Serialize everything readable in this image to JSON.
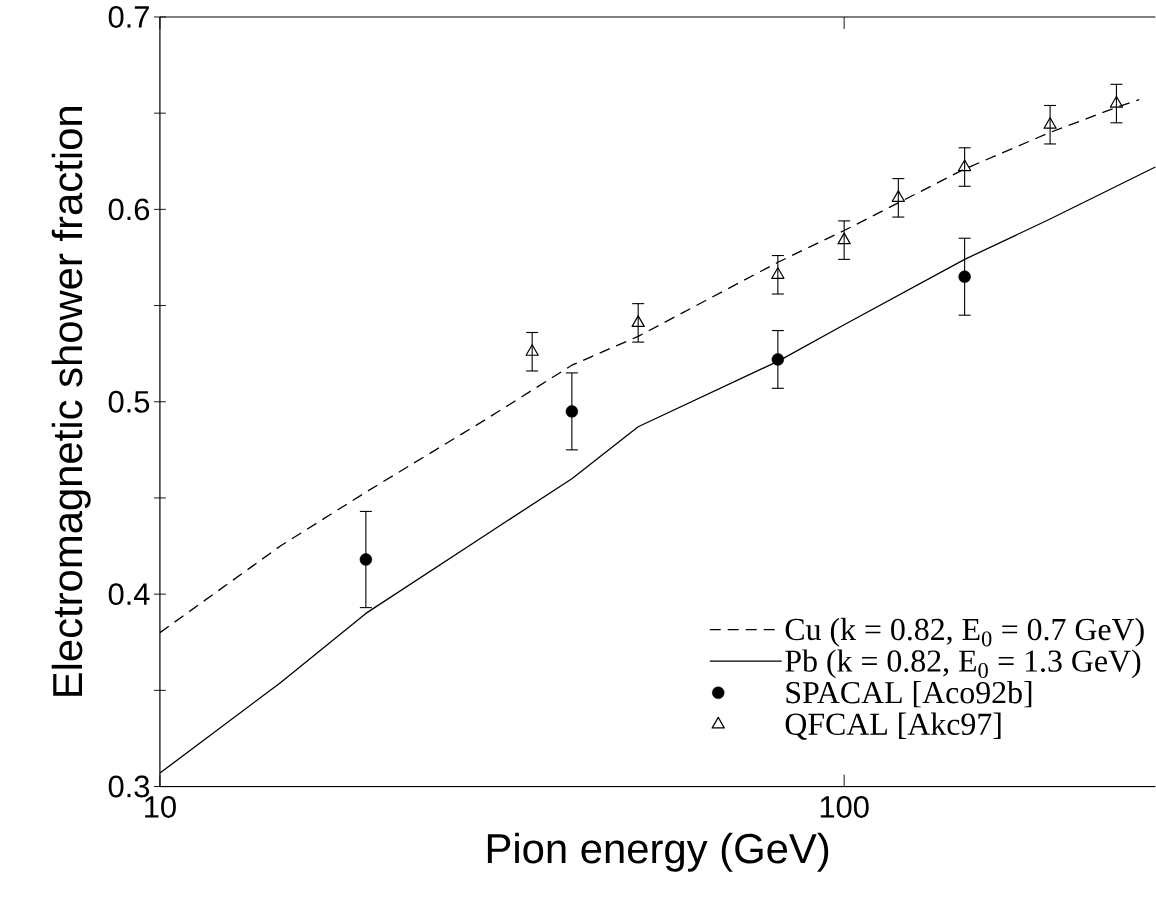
{
  "chart_data": {
    "type": "line",
    "xlabel": "Pion energy (GeV)",
    "ylabel": "Electromagnetic shower fraction",
    "log": "x",
    "xlim": [
      10,
      285
    ],
    "ylim": [
      0.3,
      0.7
    ],
    "xticks": [
      10,
      100
    ],
    "yticks": [
      0.3,
      {
        "value": 0.35,
        "label": null
      },
      0.4,
      {
        "value": 0.45,
        "label": null
      },
      0.5,
      {
        "value": 0.55,
        "label": null
      },
      0.6,
      {
        "value": 0.65,
        "label": null
      },
      0.7
    ],
    "legend": "bottom right",
    "series": [
      {
        "name": "Cu  (k = 0.82, E$_{0}$ = 0.7 GeV)",
        "line_style": "dashed",
        "marker": "none",
        "color": "#000000",
        "x": [
          10,
          15,
          20,
          30,
          40,
          50,
          80,
          100,
          150,
          200,
          250,
          270
        ],
        "values": [
          0.38,
          0.425,
          0.453,
          0.491,
          0.519,
          0.534,
          0.5725,
          0.589,
          0.621,
          0.64,
          0.653,
          0.657
        ]
      },
      {
        "name": "Pb  (k = 0.82, E$_{0}$ = 1.3 GeV)",
        "line_style": "solid",
        "marker": "none",
        "color": "#000000",
        "x": [
          10,
          15,
          20,
          30,
          40,
          50,
          80,
          100,
          150,
          200,
          285
        ],
        "values": [
          0.307,
          0.354,
          0.39,
          0.431,
          0.46,
          0.487,
          0.521,
          0.54,
          0.574,
          0.595,
          0.622
        ]
      },
      {
        "name": "SPACAL [Aco92b]",
        "type": "scatter",
        "marker": "circle",
        "color": "#000000",
        "x": [
          20,
          40,
          80,
          150
        ],
        "values": [
          0.418,
          0.495,
          0.522,
          0.565
        ],
        "errors": [
          0.025,
          0.02,
          0.015,
          0.02
        ]
      },
      {
        "name": "QFCAL [Akc97]",
        "type": "scatter",
        "marker": "triangle",
        "color": "#000000",
        "x": [
          35,
          50,
          80,
          100,
          120,
          150,
          200,
          250
        ],
        "values": [
          0.526,
          0.541,
          0.566,
          0.584,
          0.606,
          0.622,
          0.644,
          0.655
        ],
        "errors": [
          0.01,
          0.01,
          0.01,
          0.01,
          0.01,
          0.01,
          0.01,
          0.01
        ]
      }
    ]
  }
}
